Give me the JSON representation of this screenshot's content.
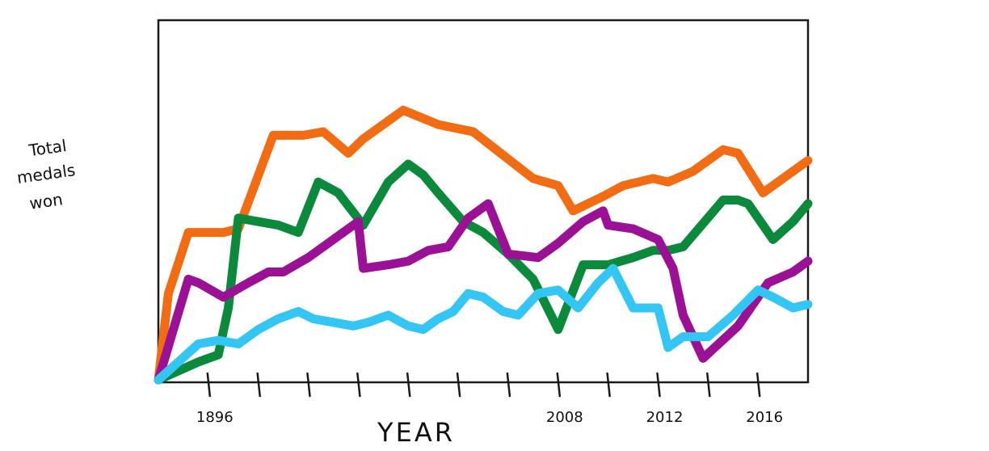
{
  "chart_data": {
    "type": "line",
    "title": "",
    "xlabel": "YEAR",
    "ylabel_lines": [
      "Total",
      "medals",
      "won"
    ],
    "x_tick_labels": [
      {
        "index": 1,
        "label": "1896"
      },
      {
        "index": 8,
        "label": "2008"
      },
      {
        "index": 10,
        "label": "2012"
      },
      {
        "index": 12,
        "label": "2016"
      }
    ],
    "x_tick_count": 13,
    "x_range": [
      0,
      13
    ],
    "ylim": [
      0,
      100
    ],
    "grid": false,
    "legend": "none",
    "series": [
      {
        "color": "#f26c13",
        "x": [
          0,
          0.2,
          0.6,
          1.3,
          1.6,
          2.3,
          2.9,
          3.3,
          3.8,
          4.1,
          4.6,
          4.9,
          5.6,
          6.3,
          7.5,
          8.0,
          8.3,
          8.9,
          9.3,
          9.9,
          10.2,
          10.7,
          11.3,
          11.6,
          12.1,
          12.7,
          13.0
        ],
        "y": [
          0,
          24,
          41,
          41,
          42,
          68,
          68,
          69,
          63,
          67,
          72,
          75,
          71,
          69,
          56,
          54,
          47,
          51,
          54,
          56,
          55,
          58,
          64,
          63,
          52,
          58,
          61
        ]
      },
      {
        "color": "#0b8a3c",
        "x": [
          0,
          0.8,
          1.2,
          1.4,
          1.6,
          2.0,
          2.4,
          2.8,
          3.2,
          3.6,
          4.1,
          4.6,
          5.0,
          5.3,
          5.6,
          6.1,
          6.5,
          7.0,
          7.5,
          8.0,
          8.5,
          9.0,
          9.5,
          9.9,
          10.2,
          10.5,
          11.3,
          11.6,
          11.8,
          12.3,
          12.7,
          13.0
        ],
        "y": [
          0,
          5,
          7,
          20,
          45,
          44,
          43,
          41,
          55,
          52,
          43,
          55,
          60,
          57,
          52,
          44,
          41,
          35,
          28,
          14,
          32,
          32,
          34,
          36,
          36,
          37,
          50,
          50,
          49,
          39,
          44,
          49
        ]
      },
      {
        "color": "#9b1196",
        "x": [
          0,
          0.6,
          0.8,
          1.3,
          1.8,
          2.2,
          2.5,
          3.0,
          3.6,
          4.0,
          4.1,
          4.6,
          5.0,
          5.4,
          5.8,
          6.2,
          6.6,
          7.0,
          7.6,
          8.0,
          8.5,
          8.9,
          9.0,
          9.5,
          10.0,
          10.3,
          10.5,
          10.9,
          11.6,
          12.2,
          12.7,
          13.0
        ],
        "y": [
          0,
          28,
          27,
          23,
          27,
          30,
          30,
          34,
          40,
          44,
          31,
          32,
          33,
          36,
          37,
          45,
          49,
          35,
          34,
          38,
          44,
          47,
          43,
          42,
          39,
          31,
          18,
          6,
          15,
          27,
          30,
          33
        ]
      },
      {
        "color": "#33c6f4",
        "x": [
          0,
          0.8,
          1.2,
          1.6,
          2.0,
          2.4,
          2.8,
          3.1,
          3.5,
          3.9,
          4.2,
          4.6,
          5.0,
          5.3,
          5.6,
          5.9,
          6.2,
          6.5,
          6.9,
          7.2,
          7.6,
          8.0,
          8.4,
          8.8,
          9.1,
          9.5,
          10.0,
          10.2,
          10.5,
          11.0,
          11.5,
          12.0,
          12.3,
          12.7,
          13.0
        ],
        "y": [
          0,
          10,
          11,
          10,
          14,
          17,
          19,
          17,
          16,
          15,
          16,
          18,
          15,
          14,
          17,
          19,
          24,
          23,
          19,
          18,
          24,
          25,
          20,
          27,
          31,
          20,
          20,
          9,
          12,
          12,
          18,
          25,
          23,
          20,
          21
        ]
      }
    ]
  }
}
